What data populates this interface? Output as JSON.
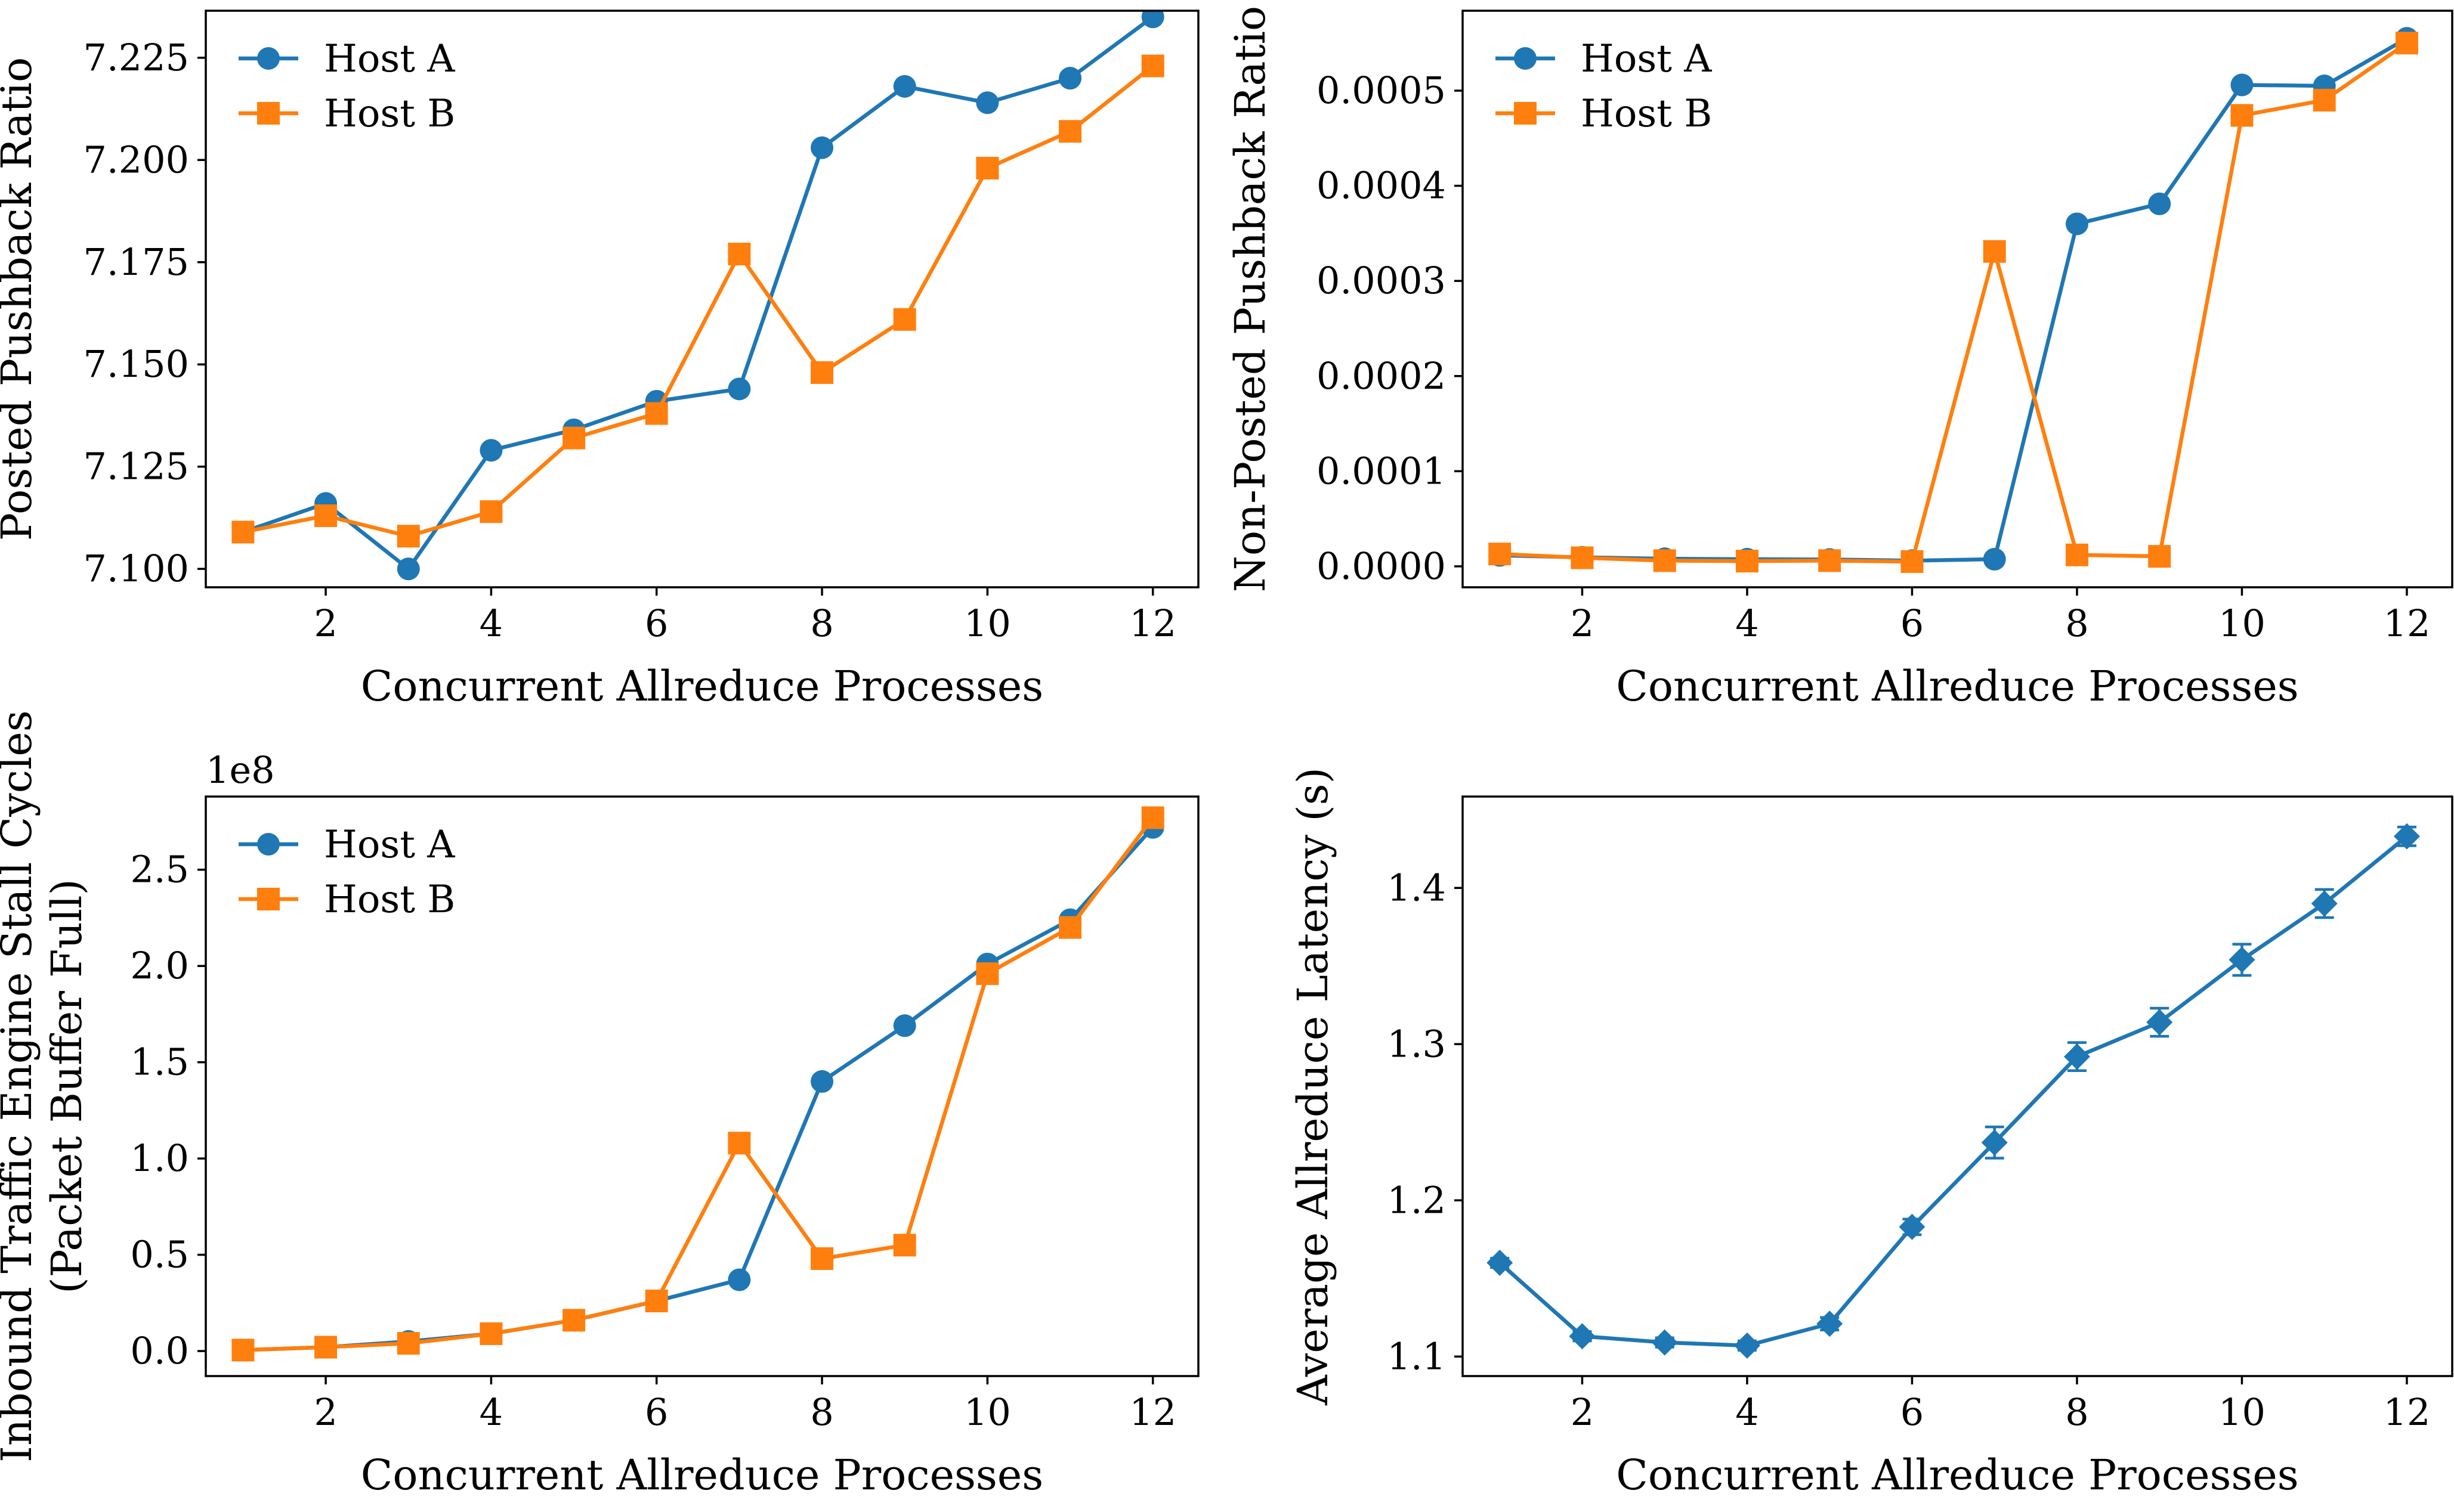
{
  "figure": {
    "colors": {
      "host_a": "#1f77b4",
      "host_b": "#ff7f0e"
    },
    "markers": {
      "host_a": "circle",
      "host_b": "square",
      "latency": "diamond"
    }
  },
  "chart_data": [
    {
      "type": "line",
      "xlabel": "Concurrent Allreduce Processes",
      "ylabel": "Posted Pushback Ratio",
      "xlim": [
        0.55,
        12.55
      ],
      "ylim": [
        7.0955,
        7.2365
      ],
      "xticks": [
        2,
        4,
        6,
        8,
        10,
        12
      ],
      "xtick_labels": [
        "2",
        "4",
        "6",
        "8",
        "10",
        "12"
      ],
      "yticks": [
        7.1,
        7.125,
        7.15,
        7.175,
        7.2,
        7.225
      ],
      "ytick_labels": [
        "7.100",
        "7.125",
        "7.150",
        "7.175",
        "7.200",
        "7.225"
      ],
      "legend": "top-left",
      "grid": false,
      "x": [
        1,
        2,
        3,
        4,
        5,
        6,
        7,
        8,
        9,
        10,
        11,
        12
      ],
      "series": [
        {
          "name": "Host A",
          "color": "#1f77b4",
          "marker": "circle",
          "values": [
            7.109,
            7.116,
            7.1,
            7.129,
            7.134,
            7.141,
            7.144,
            7.203,
            7.218,
            7.214,
            7.22,
            7.235
          ]
        },
        {
          "name": "Host B",
          "color": "#ff7f0e",
          "marker": "square",
          "values": [
            7.109,
            7.113,
            7.108,
            7.114,
            7.132,
            7.138,
            7.177,
            7.148,
            7.161,
            7.198,
            7.207,
            7.223
          ]
        }
      ]
    },
    {
      "type": "line",
      "xlabel": "Concurrent Allreduce Processes",
      "ylabel": "Non-Posted Pushback Ratio",
      "xlim": [
        0.55,
        12.55
      ],
      "ylim": [
        -2.2e-05,
        0.000584
      ],
      "xticks": [
        2,
        4,
        6,
        8,
        10,
        12
      ],
      "xtick_labels": [
        "2",
        "4",
        "6",
        "8",
        "10",
        "12"
      ],
      "yticks": [
        0,
        0.0001,
        0.0002,
        0.0003,
        0.0004,
        0.0005
      ],
      "ytick_labels": [
        "0.0000",
        "0.0001",
        "0.0002",
        "0.0003",
        "0.0004",
        "0.0005"
      ],
      "legend": "top-left",
      "grid": false,
      "x": [
        1,
        2,
        3,
        4,
        5,
        6,
        7,
        8,
        9,
        10,
        11,
        12
      ],
      "series": [
        {
          "name": "Host A",
          "color": "#1f77b4",
          "marker": "circle",
          "values": [
            1.15e-05,
            9.5e-06,
            8e-06,
            7.5e-06,
            7.2e-06,
            6e-06,
            7.5e-06,
            0.00036,
            0.000381,
            0.000506,
            0.000505,
            0.000555
          ]
        },
        {
          "name": "Host B",
          "color": "#ff7f0e",
          "marker": "square",
          "values": [
            1.3e-05,
            9e-06,
            6e-06,
            5.5e-06,
            6e-06,
            5e-06,
            0.000331,
            1.2e-05,
            1.05e-05,
            0.000474,
            0.00049,
            0.00055
          ]
        }
      ]
    },
    {
      "type": "line",
      "xlabel": "Concurrent Allreduce Processes",
      "ylabel": [
        "Inbound Traffic Engine Stall Cycles",
        "(Packet Buffer Full)"
      ],
      "offset_text": "1e8",
      "xlim": [
        0.55,
        12.55
      ],
      "ylim": [
        -0.13,
        2.88
      ],
      "xticks": [
        2,
        4,
        6,
        8,
        10,
        12
      ],
      "xtick_labels": [
        "2",
        "4",
        "6",
        "8",
        "10",
        "12"
      ],
      "yticks": [
        0,
        0.5,
        1.0,
        1.5,
        2.0,
        2.5
      ],
      "ytick_labels": [
        "0.0",
        "0.5",
        "1.0",
        "1.5",
        "2.0",
        "2.5"
      ],
      "legend": "top-left",
      "grid": false,
      "x": [
        1,
        2,
        3,
        4,
        5,
        6,
        7,
        8,
        9,
        10,
        11,
        12
      ],
      "series": [
        {
          "name": "Host A",
          "color": "#1f77b4",
          "marker": "circle",
          "values": [
            0.005,
            0.02,
            0.05,
            0.09,
            0.16,
            0.26,
            0.37,
            1.4,
            1.69,
            2.01,
            2.24,
            2.72
          ]
        },
        {
          "name": "Host B",
          "color": "#ff7f0e",
          "marker": "square",
          "values": [
            0.005,
            0.02,
            0.04,
            0.09,
            0.16,
            0.26,
            1.08,
            0.48,
            0.55,
            1.96,
            2.2,
            2.77
          ]
        }
      ]
    },
    {
      "type": "line",
      "xlabel": "Concurrent Allreduce Processes",
      "ylabel": "Average Allreduce Latency (s)",
      "xlim": [
        0.55,
        12.55
      ],
      "ylim": [
        1.0875,
        1.4585
      ],
      "xticks": [
        2,
        4,
        6,
        8,
        10,
        12
      ],
      "xtick_labels": [
        "2",
        "4",
        "6",
        "8",
        "10",
        "12"
      ],
      "yticks": [
        1.1,
        1.2,
        1.3,
        1.4
      ],
      "ytick_labels": [
        "1.1",
        "1.2",
        "1.3",
        "1.4"
      ],
      "grid": false,
      "x": [
        1,
        2,
        3,
        4,
        5,
        6,
        7,
        8,
        9,
        10,
        11,
        12
      ],
      "series": [
        {
          "color": "#1f77b4",
          "marker": "diamond",
          "error_bars": true,
          "values": [
            1.16,
            1.113,
            1.109,
            1.107,
            1.121,
            1.183,
            1.237,
            1.292,
            1.314,
            1.354,
            1.39,
            1.433
          ],
          "errors": [
            0.003,
            0.003,
            0.003,
            0.003,
            0.004,
            0.005,
            0.01,
            0.009,
            0.009,
            0.01,
            0.009,
            0.006
          ]
        }
      ]
    }
  ]
}
